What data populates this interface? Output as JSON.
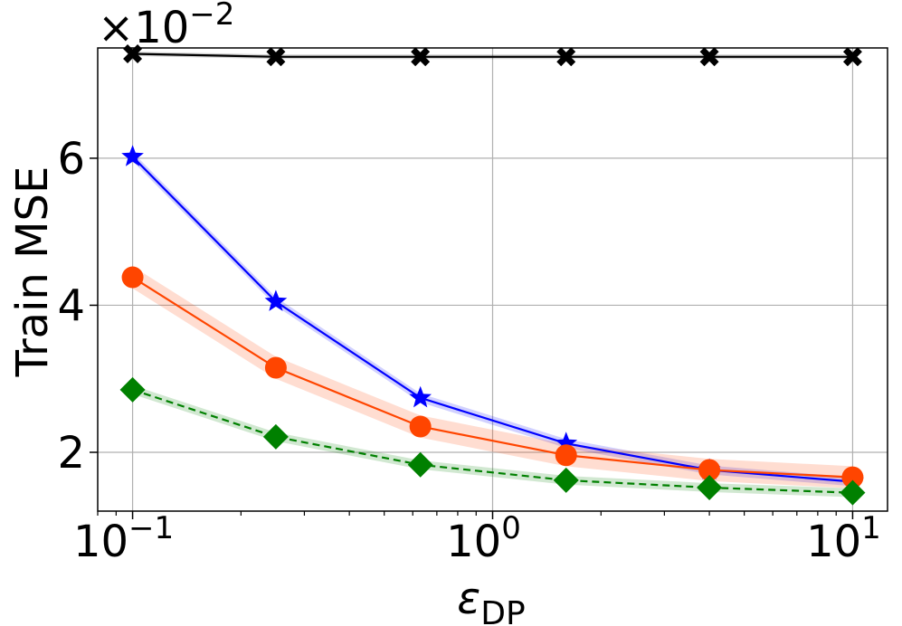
{
  "chart_data": {
    "type": "line",
    "title": "",
    "xlabel": "ε",
    "xlabel_subscript": "DP",
    "ylabel": "Train MSE",
    "xscale": "log",
    "xlim": [
      0.08,
      12.5
    ],
    "ylim": [
      1.2,
      7.5
    ],
    "y_scale_label": "×10",
    "y_scale_exponent": "−2",
    "grid": true,
    "x": [
      0.1,
      0.25,
      0.63,
      1.6,
      4.0,
      10.0
    ],
    "x_ticks": [
      {
        "value": 0.1,
        "base": "10",
        "exp": "−1"
      },
      {
        "value": 1,
        "base": "10",
        "exp": "0"
      },
      {
        "value": 10,
        "base": "10",
        "exp": "1"
      }
    ],
    "y_ticks": [
      {
        "value": 2,
        "label": "2"
      },
      {
        "value": 4,
        "label": "4"
      },
      {
        "value": 6,
        "label": "6"
      }
    ],
    "series": [
      {
        "name": "black-x",
        "color": "#000000",
        "marker": "x",
        "dash": false,
        "values": [
          7.42,
          7.38,
          7.38,
          7.38,
          7.38,
          7.38
        ],
        "band": 0.03
      },
      {
        "name": "blue-star",
        "color": "#0000ff",
        "marker": "star",
        "dash": false,
        "values": [
          6.02,
          4.05,
          2.74,
          2.12,
          1.76,
          1.6
        ],
        "band": 0.06
      },
      {
        "name": "orange-circle",
        "color": "#ff4500",
        "marker": "circle",
        "dash": false,
        "values": [
          4.38,
          3.15,
          2.35,
          1.96,
          1.76,
          1.66
        ],
        "band": 0.15
      },
      {
        "name": "green-diamond",
        "color": "#008000",
        "marker": "diamond",
        "dash": true,
        "values": [
          2.85,
          2.21,
          1.83,
          1.62,
          1.52,
          1.45
        ],
        "band": 0.06
      }
    ]
  }
}
